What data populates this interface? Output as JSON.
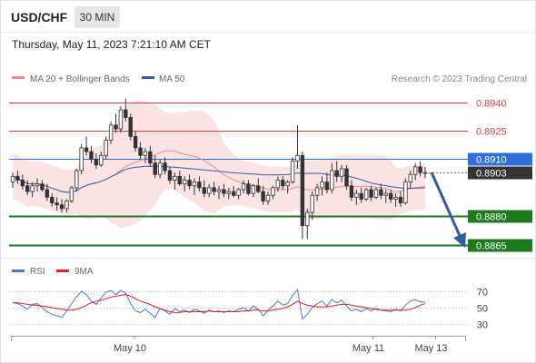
{
  "header": {
    "symbol": "USD/CHF",
    "timeframe": "30 MIN",
    "datetime": "Thursday, May 11, 2023 7:21:10 AM CET"
  },
  "legend": {
    "ma20_label": "MA 20 + Bollinger Bands",
    "ma50_label": "MA 50",
    "ma20_color": "#f08a8a",
    "ma50_color": "#2f5fa8",
    "copyright": "Research © 2023 Trading Central"
  },
  "price_levels": [
    {
      "label": "0.8940",
      "value": 0.894,
      "kind": "resistance",
      "color": "#e03c3c"
    },
    {
      "label": "0.8925",
      "value": 0.8925,
      "kind": "resistance",
      "color": "#e03c3c"
    },
    {
      "label": "0.8910",
      "value": 0.891,
      "kind": "pivot",
      "color": "#2f6fd8"
    },
    {
      "label": "0.8903",
      "value": 0.8903,
      "kind": "last",
      "color": "#333333"
    },
    {
      "label": "0.8880",
      "value": 0.888,
      "kind": "support",
      "color": "#1e7a1e"
    },
    {
      "label": "0.8865",
      "value": 0.8865,
      "kind": "support",
      "color": "#1e7a1e"
    }
  ],
  "rsi": {
    "rsi_label": "RSI",
    "ma_label": "9MA",
    "rsi_color": "#4a78d0",
    "ma_color": "#e02020",
    "levels": [
      "70",
      "50",
      "30"
    ]
  },
  "xaxis": {
    "ticks": [
      {
        "label": "May 10",
        "pos": 0.272
      },
      {
        "label": "May 11",
        "pos": 0.797
      },
      {
        "label": "May 13",
        "pos": 0.935
      }
    ]
  },
  "chart_data": {
    "type": "candlestick",
    "symbol": "USD/CHF",
    "timeframe": "30 MIN",
    "ylim": [
      0.8861,
      0.8948
    ],
    "rsi_ylim": [
      20,
      80
    ],
    "candles": [
      [
        0.8898,
        0.8903,
        0.8895,
        0.8901
      ],
      [
        0.8901,
        0.8904,
        0.8897,
        0.8899
      ],
      [
        0.8899,
        0.8902,
        0.8894,
        0.8896
      ],
      [
        0.8896,
        0.8899,
        0.8891,
        0.8893
      ],
      [
        0.8893,
        0.8898,
        0.889,
        0.8896
      ],
      [
        0.8896,
        0.89,
        0.8893,
        0.8897
      ],
      [
        0.8897,
        0.8899,
        0.8893,
        0.8894
      ],
      [
        0.8894,
        0.8897,
        0.8888,
        0.889
      ],
      [
        0.889,
        0.8892,
        0.8885,
        0.8887
      ],
      [
        0.8887,
        0.889,
        0.8883,
        0.8886
      ],
      [
        0.8886,
        0.8889,
        0.8882,
        0.8884
      ],
      [
        0.8884,
        0.8889,
        0.8882,
        0.8888
      ],
      [
        0.8888,
        0.8896,
        0.8887,
        0.8895
      ],
      [
        0.8895,
        0.8905,
        0.8893,
        0.8904
      ],
      [
        0.8904,
        0.8918,
        0.8902,
        0.8916
      ],
      [
        0.8916,
        0.8922,
        0.8912,
        0.8914
      ],
      [
        0.8914,
        0.8917,
        0.8908,
        0.891
      ],
      [
        0.891,
        0.8913,
        0.8905,
        0.8907
      ],
      [
        0.8907,
        0.8914,
        0.8906,
        0.8912
      ],
      [
        0.8912,
        0.8922,
        0.891,
        0.892
      ],
      [
        0.892,
        0.893,
        0.8918,
        0.8928
      ],
      [
        0.8928,
        0.8934,
        0.8924,
        0.8926
      ],
      [
        0.8926,
        0.8938,
        0.8924,
        0.8936
      ],
      [
        0.8936,
        0.8942,
        0.893,
        0.8932
      ],
      [
        0.8932,
        0.8934,
        0.892,
        0.8922
      ],
      [
        0.8922,
        0.8925,
        0.8914,
        0.8916
      ],
      [
        0.8916,
        0.8919,
        0.891,
        0.8912
      ],
      [
        0.8912,
        0.8916,
        0.8908,
        0.8914
      ],
      [
        0.8914,
        0.8917,
        0.8906,
        0.8908
      ],
      [
        0.8908,
        0.8912,
        0.89,
        0.8902
      ],
      [
        0.8902,
        0.891,
        0.89,
        0.8908
      ],
      [
        0.8908,
        0.8911,
        0.8902,
        0.8904
      ],
      [
        0.8904,
        0.8906,
        0.8897,
        0.8899
      ],
      [
        0.8899,
        0.8903,
        0.8894,
        0.8901
      ],
      [
        0.8901,
        0.8904,
        0.8896,
        0.8897
      ],
      [
        0.8897,
        0.8901,
        0.8893,
        0.8899
      ],
      [
        0.8899,
        0.8902,
        0.8894,
        0.8896
      ],
      [
        0.8896,
        0.89,
        0.8891,
        0.8898
      ],
      [
        0.8898,
        0.8901,
        0.8893,
        0.8895
      ],
      [
        0.8895,
        0.8899,
        0.889,
        0.8892
      ],
      [
        0.8892,
        0.8897,
        0.889,
        0.8895
      ],
      [
        0.8895,
        0.8898,
        0.8891,
        0.8893
      ],
      [
        0.8893,
        0.8896,
        0.8889,
        0.8894
      ],
      [
        0.8894,
        0.8897,
        0.889,
        0.8892
      ],
      [
        0.8892,
        0.8895,
        0.8889,
        0.8893
      ],
      [
        0.8893,
        0.8896,
        0.889,
        0.8891
      ],
      [
        0.8891,
        0.8895,
        0.8889,
        0.8894
      ],
      [
        0.8894,
        0.8899,
        0.8892,
        0.8897
      ],
      [
        0.8897,
        0.8899,
        0.8891,
        0.8892
      ],
      [
        0.8892,
        0.8897,
        0.889,
        0.8896
      ],
      [
        0.8896,
        0.89,
        0.8892,
        0.8893
      ],
      [
        0.8893,
        0.8896,
        0.8886,
        0.8888
      ],
      [
        0.8888,
        0.8893,
        0.8886,
        0.8891
      ],
      [
        0.8891,
        0.8896,
        0.8889,
        0.8895
      ],
      [
        0.8895,
        0.8901,
        0.8893,
        0.8899
      ],
      [
        0.8899,
        0.8901,
        0.8894,
        0.8896
      ],
      [
        0.8896,
        0.8899,
        0.8892,
        0.8898
      ],
      [
        0.8898,
        0.8911,
        0.8897,
        0.8909
      ],
      [
        0.8909,
        0.8928,
        0.8905,
        0.8912
      ],
      [
        0.8912,
        0.8914,
        0.8868,
        0.8875
      ],
      [
        0.8875,
        0.8884,
        0.8868,
        0.8882
      ],
      [
        0.8882,
        0.8893,
        0.8878,
        0.8891
      ],
      [
        0.8891,
        0.8897,
        0.8888,
        0.8895
      ],
      [
        0.8895,
        0.8901,
        0.8891,
        0.8898
      ],
      [
        0.8898,
        0.8903,
        0.8892,
        0.8894
      ],
      [
        0.8894,
        0.8908,
        0.8892,
        0.8904
      ],
      [
        0.8904,
        0.8909,
        0.8898,
        0.8901
      ],
      [
        0.8901,
        0.8907,
        0.8898,
        0.8905
      ],
      [
        0.8905,
        0.8907,
        0.8894,
        0.8896
      ],
      [
        0.8896,
        0.8899,
        0.8888,
        0.889
      ],
      [
        0.889,
        0.8894,
        0.8886,
        0.8892
      ],
      [
        0.8892,
        0.8895,
        0.8887,
        0.8889
      ],
      [
        0.8889,
        0.8895,
        0.8888,
        0.8894
      ],
      [
        0.8894,
        0.8896,
        0.8888,
        0.889
      ],
      [
        0.889,
        0.8895,
        0.8889,
        0.8894
      ],
      [
        0.8894,
        0.8897,
        0.8889,
        0.8891
      ],
      [
        0.8891,
        0.8894,
        0.8887,
        0.8892
      ],
      [
        0.8892,
        0.8894,
        0.8887,
        0.8889
      ],
      [
        0.8889,
        0.8892,
        0.8885,
        0.889
      ],
      [
        0.889,
        0.8893,
        0.8885,
        0.8887
      ],
      [
        0.8887,
        0.89,
        0.8886,
        0.8898
      ],
      [
        0.8898,
        0.8904,
        0.8895,
        0.8902
      ],
      [
        0.8902,
        0.8908,
        0.8899,
        0.8906
      ],
      [
        0.8906,
        0.8909,
        0.8901,
        0.8903
      ],
      [
        0.8903,
        0.8906,
        0.89,
        0.8903
      ]
    ],
    "rsi_values": [
      56,
      55,
      52,
      48,
      54,
      55,
      50,
      45,
      42,
      40,
      38,
      46,
      55,
      63,
      70,
      66,
      58,
      54,
      62,
      69,
      71,
      66,
      71,
      68,
      55,
      46,
      44,
      48,
      43,
      38,
      49,
      46,
      42,
      49,
      45,
      47,
      44,
      48,
      46,
      43,
      47,
      45,
      46,
      44,
      46,
      45,
      48,
      50,
      46,
      52,
      48,
      40,
      47,
      52,
      58,
      53,
      55,
      65,
      72,
      36,
      42,
      50,
      55,
      58,
      52,
      60,
      56,
      59,
      52,
      46,
      48,
      45,
      49,
      46,
      49,
      47,
      46,
      45,
      48,
      46,
      53,
      58,
      60,
      57,
      57
    ],
    "rsi_ma_values": [
      56,
      56,
      55,
      54,
      53,
      53,
      52,
      51,
      50,
      49,
      48,
      47,
      47,
      48,
      50,
      53,
      56,
      58,
      59,
      61,
      63,
      64,
      65,
      66,
      64,
      61,
      58,
      56,
      54,
      51,
      49,
      47,
      45,
      44,
      44,
      45,
      45,
      45,
      45,
      45,
      46,
      45,
      45,
      45,
      45,
      45,
      45,
      46,
      46,
      47,
      47,
      46,
      46,
      47,
      48,
      49,
      51,
      54,
      58,
      55,
      53,
      52,
      51,
      51,
      51,
      52,
      53,
      54,
      54,
      53,
      52,
      51,
      50,
      49,
      48,
      47,
      47,
      47,
      47,
      47,
      47,
      48,
      50,
      53,
      55
    ]
  }
}
